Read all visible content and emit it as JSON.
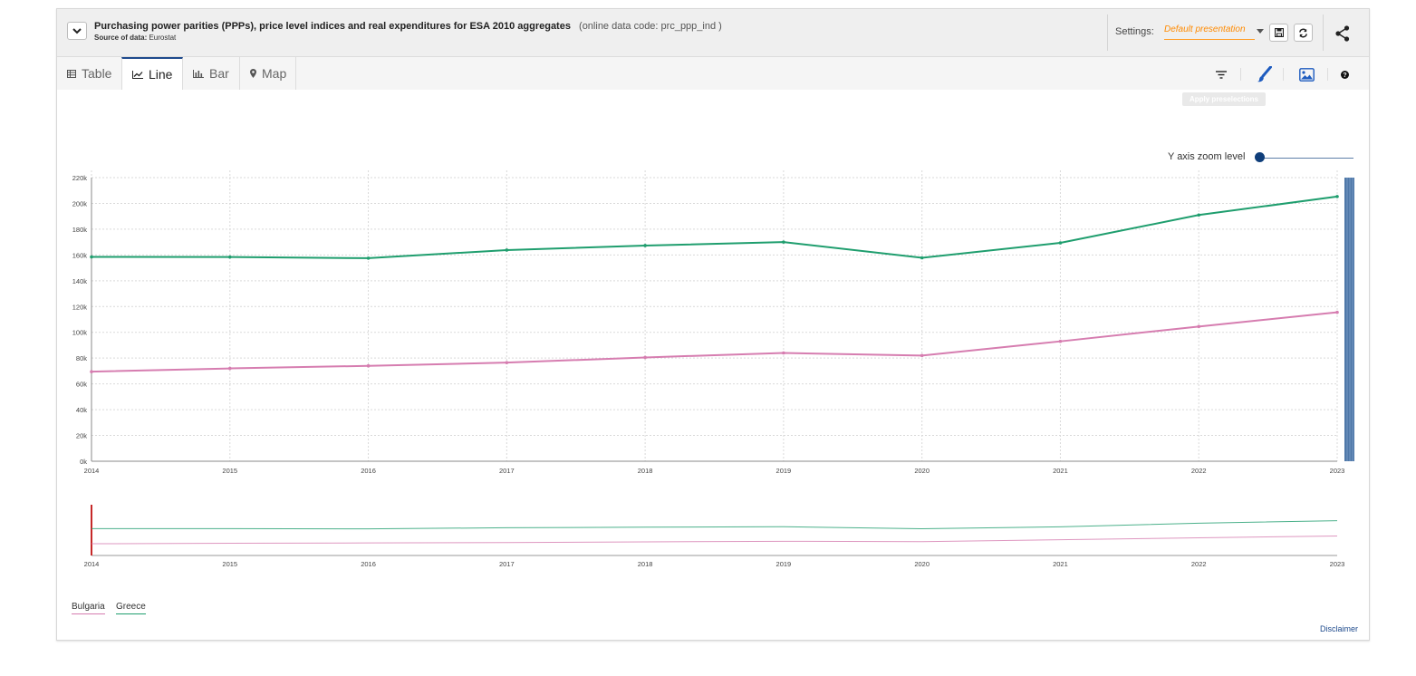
{
  "header": {
    "title": "Purchasing power parities (PPPs), price level indices and real expenditures for ESA 2010 aggregates",
    "online_code": "(online data code: prc_ppp_ind )",
    "source_label": "Source of data:",
    "source_value": "Eurostat",
    "settings_label": "Settings:",
    "settings_value": "Default presentation"
  },
  "tabs": [
    {
      "label": "Table",
      "icon": "table-icon"
    },
    {
      "label": "Line",
      "icon": "line-chart-icon"
    },
    {
      "label": "Bar",
      "icon": "bar-chart-icon"
    },
    {
      "label": "Map",
      "icon": "map-pin-icon"
    }
  ],
  "active_tab": "Line",
  "toolbar": {
    "tooltip": "Apply preselections",
    "icons": [
      "filter-icon",
      "brush-icon",
      "image-icon",
      "help-icon"
    ]
  },
  "zoom": {
    "label": "Y axis zoom level"
  },
  "legend": [
    "Bulgaria",
    "Greece"
  ],
  "disclaimer": "Disclaimer",
  "colors": {
    "Greece": "#1f9e6e",
    "Bulgaria": "#d67db0",
    "accent": "#1e4a8c",
    "settings": "#ff8a00"
  },
  "chart_data": {
    "type": "line",
    "x": [
      2014,
      2015,
      2016,
      2017,
      2018,
      2019,
      2020,
      2021,
      2022,
      2023
    ],
    "y_ticks": [
      "0k",
      "20k",
      "40k",
      "60k",
      "80k",
      "100k",
      "120k",
      "140k",
      "160k",
      "180k",
      "200k",
      "220k"
    ],
    "ylim": [
      0,
      220000
    ],
    "grid": true,
    "series": [
      {
        "name": "Greece",
        "values": [
          158500,
          158400,
          157500,
          163800,
          167300,
          170000,
          157800,
          169400,
          191000,
          205300
        ]
      },
      {
        "name": "Bulgaria",
        "values": [
          69500,
          72000,
          74000,
          76500,
          80500,
          84000,
          82000,
          93000,
          104500,
          115500
        ]
      }
    ]
  }
}
